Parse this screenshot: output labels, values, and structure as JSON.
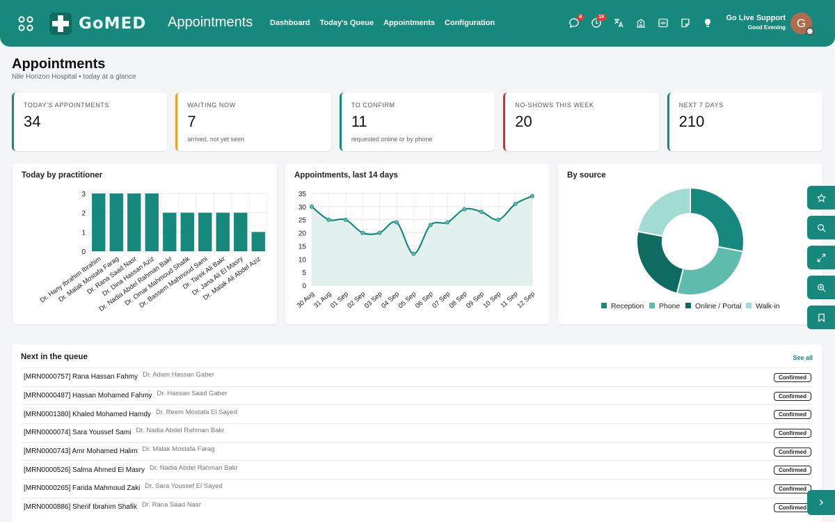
{
  "header": {
    "logo_text": "GoMED",
    "page_heading": "Appointments",
    "nav": [
      "Dashboard",
      "Today's Queue",
      "Appointments",
      "Configuration"
    ],
    "messages_count": "4",
    "notifications_count": "19",
    "user_name": "Go Live Support",
    "user_greeting": "Good Evening",
    "avatar_initial": "G",
    "brand_color": "#16897c"
  },
  "page": {
    "title": "Appointments",
    "subtitle": "Nile Horizon Hospital • today at a glance"
  },
  "stats": [
    {
      "label": "TODAY'S APPOINTMENTS",
      "value": "34",
      "note": "",
      "accent": "#16897c"
    },
    {
      "label": "WAITING NOW",
      "value": "7",
      "note": "arrived, not yet seen",
      "accent": "#f0a020"
    },
    {
      "label": "TO CONFIRM",
      "value": "11",
      "note": "requested online or by phone",
      "accent": "#16897c"
    },
    {
      "label": "NO-SHOWS THIS WEEK",
      "value": "20",
      "note": "",
      "accent": "#d32f2f"
    },
    {
      "label": "NEXT 7 DAYS",
      "value": "210",
      "note": "",
      "accent": "#16897c"
    }
  ],
  "panels": {
    "practitioner_title": "Today by practitioner",
    "trend_title": "Appointments, last 14 days",
    "source_title": "By source"
  },
  "chart_data": [
    {
      "type": "bar",
      "title": "Today by practitioner",
      "categories": [
        "Dr. Hany Ibrahim Ibrahim",
        "Dr. Malak Mostafa Farag",
        "Dr. Rana Saad Nasr",
        "Dr. Dina Hassan Aziz",
        "Dr. Nadia Abdel Rahman Bakr",
        "Dr. Omar Mahmoud Shafik",
        "Dr. Bassem Mahmoud Sami",
        "Dr. Tarek Ali Bakr",
        "Dr. Jana Ali El Masry",
        "Dr. Malak Ali Abdel Aziz"
      ],
      "values": [
        3,
        3,
        3,
        3,
        2,
        2,
        2,
        2,
        2,
        1
      ],
      "ylim": [
        0,
        3
      ],
      "yticks": [
        0,
        1,
        2,
        3
      ],
      "color": "#16897c",
      "grid": true
    },
    {
      "type": "line",
      "title": "Appointments, last 14 days",
      "x": [
        "30 Aug",
        "31 Aug",
        "01 Sep",
        "02 Sep",
        "03 Sep",
        "04 Sep",
        "05 Sep",
        "06 Sep",
        "07 Sep",
        "08 Sep",
        "09 Sep",
        "10 Sep",
        "11 Sep",
        "12 Sep"
      ],
      "values": [
        30,
        25,
        25,
        20,
        20,
        24,
        12,
        23,
        24,
        29,
        28,
        25,
        31,
        34
      ],
      "ylim": [
        0,
        35
      ],
      "yticks": [
        0,
        5,
        10,
        15,
        20,
        25,
        30,
        35
      ],
      "color": "#16897c",
      "fill": "#e2f1ee",
      "grid": true
    },
    {
      "type": "pie",
      "title": "By source",
      "labels": [
        "Reception",
        "Phone",
        "Online / Portal",
        "Walk-in"
      ],
      "values": [
        28,
        26,
        24,
        22
      ],
      "colors": [
        "#16897c",
        "#5dbcac",
        "#0f6b60",
        "#a2dbd2"
      ],
      "legend": "bottom"
    }
  ],
  "queue": {
    "title": "Next in the queue",
    "see_all": "See all",
    "rows": [
      {
        "patient": "[MRN0000757] Rana Hassan Fahmy",
        "doctor": "Dr. Adam Hassan Gaber",
        "status": "Confirmed"
      },
      {
        "patient": "[MRN0000487] Hassan Mohamed Fahmy",
        "doctor": "Dr. Hassan Saad Gaber",
        "status": "Confirmed"
      },
      {
        "patient": "[MRN0001380] Khaled Mohamed Hamdy",
        "doctor": "Dr. Reem Mostafa El Sayed",
        "status": "Confirmed"
      },
      {
        "patient": "[MRN0000074] Sara Youssef Sami",
        "doctor": "Dr. Nadia Abdel Rahman Bakr",
        "status": "Confirmed"
      },
      {
        "patient": "[MRN0000743] Amr Mohamed Halim",
        "doctor": "Dr. Malak Mostafa Farag",
        "status": "Confirmed"
      },
      {
        "patient": "[MRN0000526] Salma Ahmed El Masry",
        "doctor": "Dr. Nadia Abdel Rahman Bakr",
        "status": "Confirmed"
      },
      {
        "patient": "[MRN0000265] Farida Mahmoud Zaki",
        "doctor": "Dr. Sara Youssef El Sayed",
        "status": "Confirmed"
      },
      {
        "patient": "[MRN0000886] Sherif Ibrahim Shafik",
        "doctor": "Dr. Rana Saad Nasr",
        "status": "Confirmed"
      }
    ]
  },
  "side_buttons": [
    "star-icon",
    "search-icon",
    "expand-icon",
    "zoom-in-icon",
    "bookmark-icon"
  ]
}
